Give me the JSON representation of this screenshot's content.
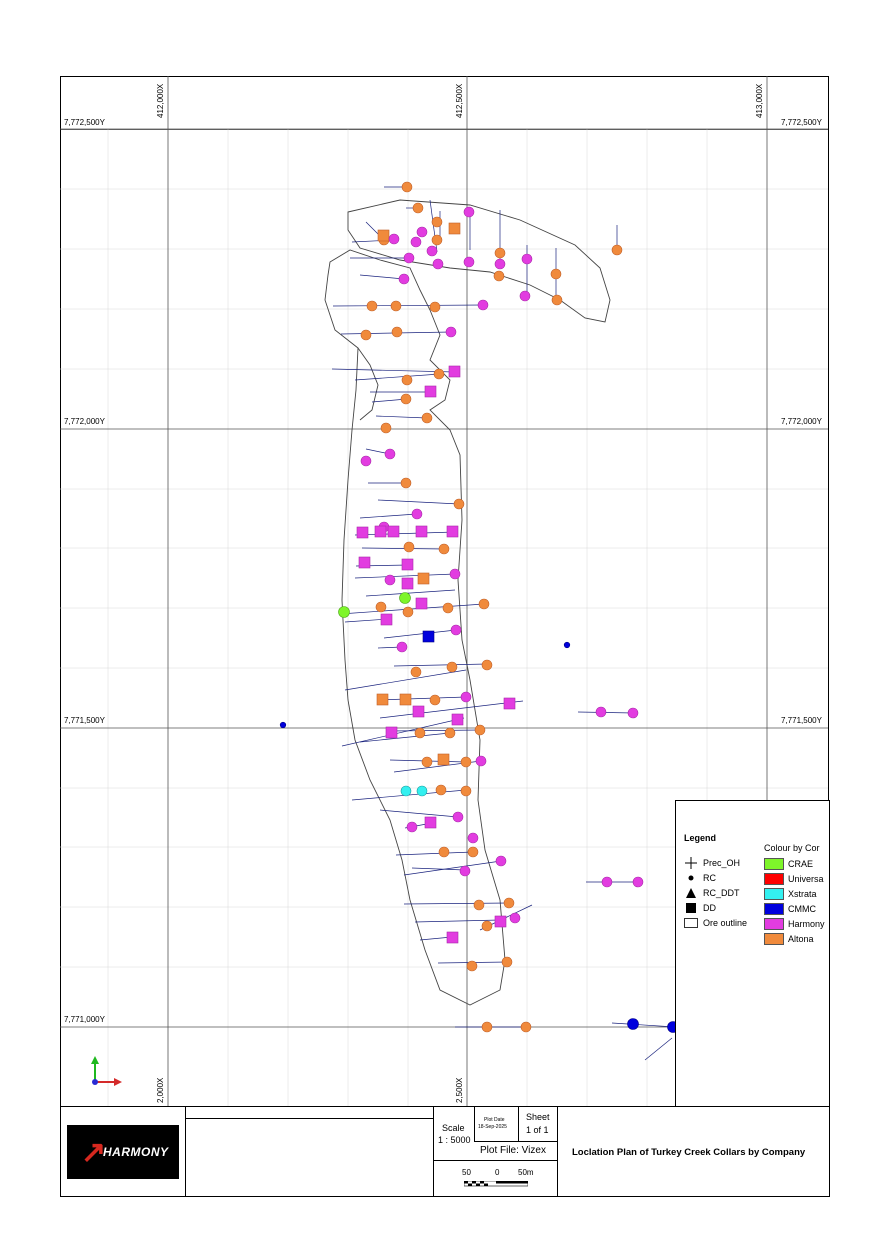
{
  "map": {
    "grid_x_labels": [
      "412,000X",
      "412,500X",
      "413,000X"
    ],
    "grid_x_labels_bottom": [
      "2,000X",
      "2,500X"
    ],
    "grid_y_labels": [
      "7,772,500Y",
      "7,772,000Y",
      "7,771,500Y",
      "7,771,000Y"
    ]
  },
  "legend": {
    "title": "Legend",
    "colour_title": "Colour by Cor",
    "symbols": [
      {
        "icon": "cross-icon",
        "label": "Prec_OH"
      },
      {
        "icon": "dot-icon",
        "label": "RC"
      },
      {
        "icon": "triangle-icon",
        "label": "RC_DDT"
      },
      {
        "icon": "square-icon",
        "label": "DD"
      },
      {
        "icon": "outline-box-icon",
        "label": "Ore outline"
      }
    ],
    "colours": [
      {
        "label": "CRAE",
        "color": "#7ef52a"
      },
      {
        "label": "Universa",
        "color": "#ff0000"
      },
      {
        "label": "Xstrata",
        "color": "#33f0f0"
      },
      {
        "label": "CMMC",
        "color": "#0000dd"
      },
      {
        "label": "Harmony",
        "color": "#e23ce0"
      },
      {
        "label": "Altona",
        "color": "#f08a3c"
      }
    ]
  },
  "titleblock": {
    "company": "HARMONY",
    "scale_label": "Scale",
    "scale_value": "1 : 5000",
    "plot_date_label": "Plot Date",
    "plot_date_value": "18-Sep-2025",
    "sheet_label": "Sheet",
    "sheet_value": "1 of 1",
    "plot_file": "Plot File: Vizex",
    "scalebar_left": "50",
    "scalebar_mid": "0",
    "scalebar_right": "50m",
    "plan_title": "Loclation Plan of Turkey Creek Collars by Company"
  }
}
